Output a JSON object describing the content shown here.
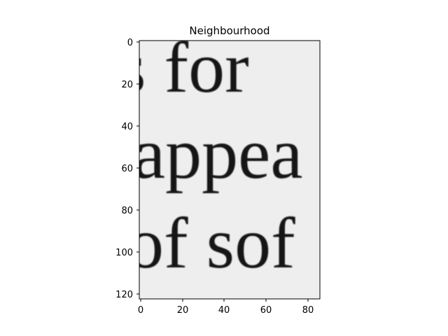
{
  "title": "Neighbourhood",
  "image": {
    "description_words": [],
    "crop_text_lines": [
      "s for",
      "appea",
      "of sof"
    ],
    "background_color": "#eeeeee",
    "ink_color": "#161616"
  },
  "axes": {
    "x_ticks": [
      "0",
      "20",
      "40",
      "60",
      "80"
    ],
    "y_ticks": [
      "0",
      "20",
      "40",
      "60",
      "80",
      "100",
      "120"
    ],
    "xlim": [
      -0.5,
      85.5
    ],
    "ylim": [
      123.5,
      -0.5
    ]
  }
}
